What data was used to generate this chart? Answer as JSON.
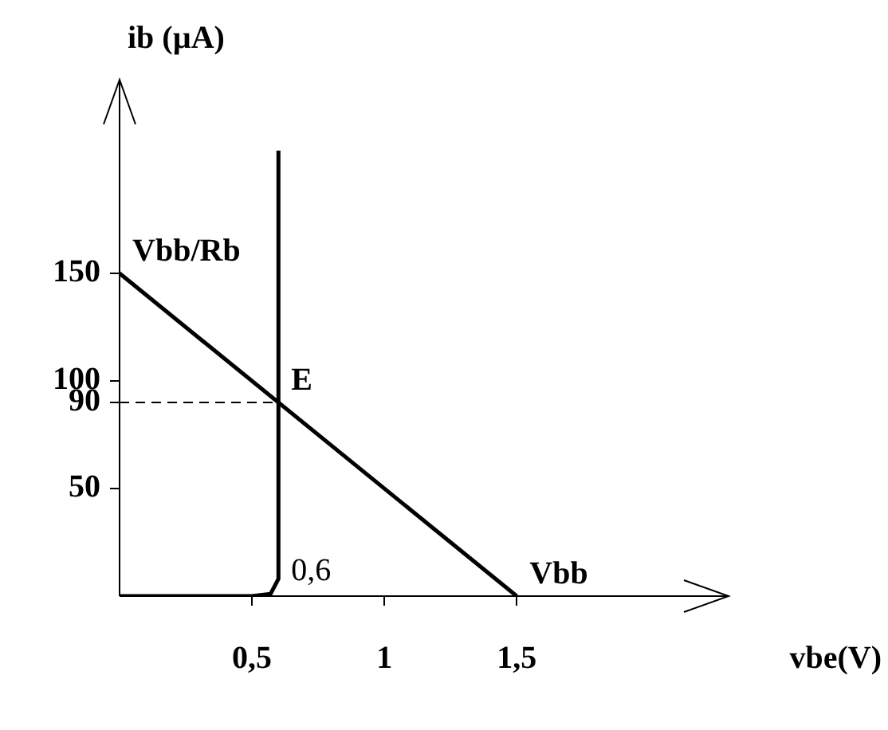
{
  "chart_data": {
    "type": "line",
    "xlabel": "vbe(V)",
    "ylabel": "ib (µA)",
    "xlim": [
      0,
      2.3
    ],
    "ylim": [
      0,
      240
    ],
    "xticks": [
      {
        "value": 0.5,
        "label": "0,5"
      },
      1,
      {
        "value": 1.5,
        "label": "1,5"
      }
    ],
    "yticks": [
      50,
      90,
      100,
      150
    ],
    "grid": false,
    "legend": false,
    "marker": "none",
    "series": [
      {
        "color": "#000000",
        "line_style": "solid",
        "x": [
          0,
          0.5,
          0.57,
          0.6,
          0.6,
          0.6
        ],
        "values": [
          0,
          0,
          1,
          8,
          30,
          207
        ]
      },
      {
        "color": "#000000",
        "line_style": "solid",
        "x": [
          0,
          1.5
        ],
        "values": [
          150,
          0
        ]
      },
      {
        "color": "#000000",
        "line_style": "dashed",
        "x": [
          0,
          0.6
        ],
        "values": [
          90,
          90
        ]
      }
    ],
    "annotations": [
      {
        "text": "Vbb/Rb",
        "x": 0,
        "y": 150
      },
      {
        "text": "E",
        "x": 0.6,
        "y": 90
      },
      {
        "text": "Vbb",
        "x": 1.5,
        "y": 0
      },
      {
        "text": "0,6",
        "x": 0.6,
        "y": 0
      }
    ]
  }
}
